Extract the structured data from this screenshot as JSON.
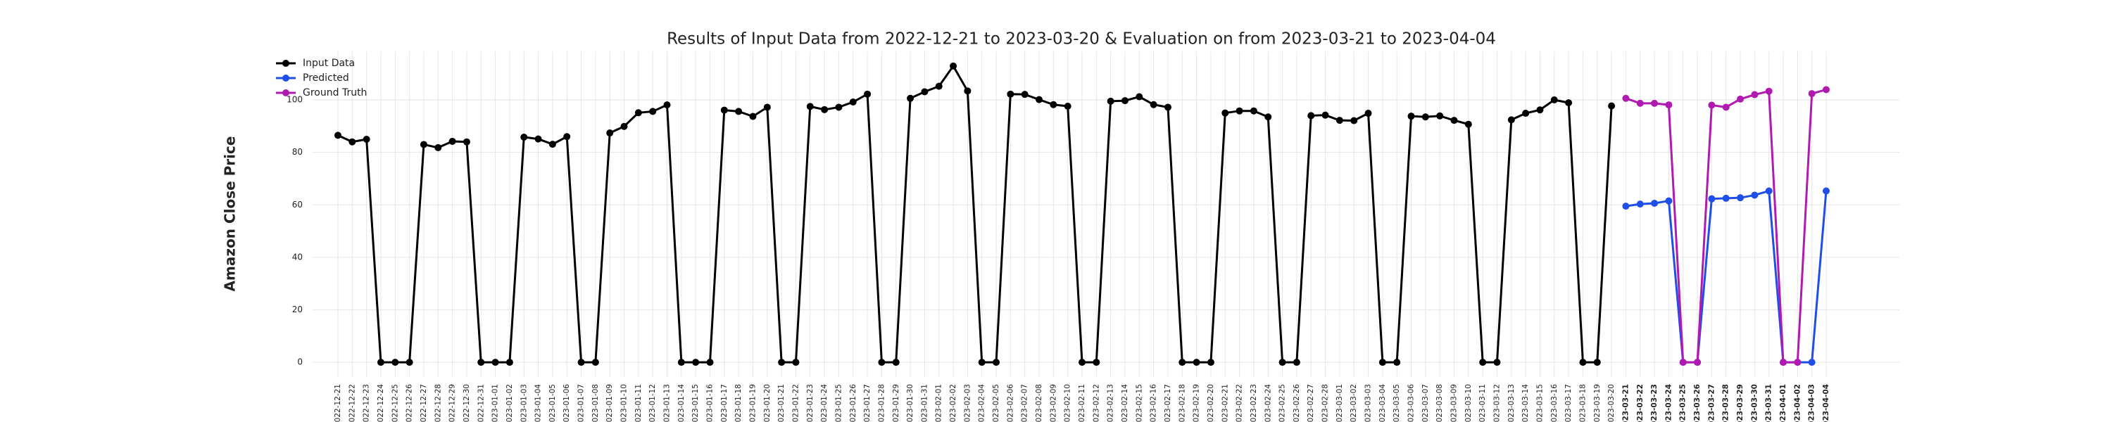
{
  "chart_data": {
    "type": "line",
    "title": "Results of Input Data from 2022-12-21 to 2023-03-20 & Evaluation on from 2023-03-21 to 2023-04-04",
    "y_label": "Amazon Close Price",
    "categories": [
      "2022-12-21",
      "2022-12-22",
      "2022-12-23",
      "2022-12-24",
      "2022-12-25",
      "2022-12-26",
      "2022-12-27",
      "2022-12-28",
      "2022-12-29",
      "2022-12-30",
      "2022-12-31",
      "2023-01-01",
      "2023-01-02",
      "2023-01-03",
      "2023-01-04",
      "2023-01-05",
      "2023-01-06",
      "2023-01-07",
      "2023-01-08",
      "2023-01-09",
      "2023-01-10",
      "2023-01-11",
      "2023-01-12",
      "2023-01-13",
      "2023-01-14",
      "2023-01-15",
      "2023-01-16",
      "2023-01-17",
      "2023-01-18",
      "2023-01-19",
      "2023-01-20",
      "2023-01-21",
      "2023-01-22",
      "2023-01-23",
      "2023-01-24",
      "2023-01-25",
      "2023-01-26",
      "2023-01-27",
      "2023-01-28",
      "2023-01-29",
      "2023-01-30",
      "2023-01-31",
      "2023-02-01",
      "2023-02-02",
      "2023-02-03",
      "2023-02-04",
      "2023-02-05",
      "2023-02-06",
      "2023-02-07",
      "2023-02-08",
      "2023-02-09",
      "2023-02-10",
      "2023-02-11",
      "2023-02-12",
      "2023-02-13",
      "2023-02-14",
      "2023-02-15",
      "2023-02-16",
      "2023-02-17",
      "2023-02-18",
      "2023-02-19",
      "2023-02-20",
      "2023-02-21",
      "2023-02-22",
      "2023-02-23",
      "2023-02-24",
      "2023-02-25",
      "2023-02-26",
      "2023-02-27",
      "2023-02-28",
      "2023-03-01",
      "2023-03-02",
      "2023-03-03",
      "2023-03-04",
      "2023-03-05",
      "2023-03-06",
      "2023-03-07",
      "2023-03-08",
      "2023-03-09",
      "2023-03-10",
      "2023-03-11",
      "2023-03-12",
      "2023-03-13",
      "2023-03-14",
      "2023-03-15",
      "2023-03-16",
      "2023-03-17",
      "2023-03-18",
      "2023-03-19",
      "2023-03-20",
      "2023-03-21",
      "2023-03-22",
      "2023-03-23",
      "2023-03-24",
      "2023-03-25",
      "2023-03-26",
      "2023-03-27",
      "2023-03-28",
      "2023-03-29",
      "2023-03-30",
      "2023-03-31",
      "2023-04-01",
      "2023-04-02",
      "2023-04-03",
      "2023-04-04"
    ],
    "series": [
      {
        "name": "Input Data",
        "color": "#000000",
        "values": [
          86.5,
          84,
          85,
          0,
          0,
          0,
          83,
          81.8,
          84.2,
          84,
          0,
          0,
          0,
          85.8,
          85.1,
          83.1,
          86,
          0,
          0,
          87.4,
          89.9,
          95.1,
          95.6,
          98.1,
          0,
          0,
          0,
          96.1,
          95.6,
          93.7,
          97.2,
          0,
          0,
          97.5,
          96.3,
          97.2,
          99.2,
          102.2,
          0,
          0,
          100.6,
          103.1,
          105.2,
          112.9,
          103.4,
          0,
          0,
          102.2,
          102.1,
          100.1,
          98.2,
          97.6,
          0,
          0,
          99.5,
          99.7,
          101.2,
          98.2,
          97.2,
          0,
          0,
          0,
          95,
          95.8,
          95.8,
          93.5,
          0,
          0,
          94,
          94.2,
          92.2,
          92.1,
          94.9,
          0,
          0,
          93.8,
          93.5,
          93.9,
          92.2,
          90.7,
          0,
          0,
          92.4,
          94.9,
          96.2,
          100,
          98.9,
          0,
          0,
          97.7,
          null,
          null,
          null,
          null,
          null,
          null,
          null,
          null,
          null,
          null,
          null,
          null,
          null,
          null,
          null
        ]
      },
      {
        "name": "Predicted",
        "color": "#1f4ee8",
        "values": [
          null,
          null,
          null,
          null,
          null,
          null,
          null,
          null,
          null,
          null,
          null,
          null,
          null,
          null,
          null,
          null,
          null,
          null,
          null,
          null,
          null,
          null,
          null,
          null,
          null,
          null,
          null,
          null,
          null,
          null,
          null,
          null,
          null,
          null,
          null,
          null,
          null,
          null,
          null,
          null,
          null,
          null,
          null,
          null,
          null,
          null,
          null,
          null,
          null,
          null,
          null,
          null,
          null,
          null,
          null,
          null,
          null,
          null,
          null,
          null,
          null,
          null,
          null,
          null,
          null,
          null,
          null,
          null,
          null,
          null,
          null,
          null,
          null,
          null,
          null,
          null,
          null,
          null,
          null,
          null,
          null,
          null,
          null,
          null,
          null,
          null,
          null,
          null,
          null,
          null,
          59.5,
          60.3,
          60.6,
          61.5,
          0,
          0,
          62.3,
          62.5,
          62.7,
          63.7,
          65.3,
          0,
          0,
          0,
          65.3
        ]
      },
      {
        "name": "Ground Truth",
        "color": "#b01ab0",
        "values": [
          null,
          null,
          null,
          null,
          null,
          null,
          null,
          null,
          null,
          null,
          null,
          null,
          null,
          null,
          null,
          null,
          null,
          null,
          null,
          null,
          null,
          null,
          null,
          null,
          null,
          null,
          null,
          null,
          null,
          null,
          null,
          null,
          null,
          null,
          null,
          null,
          null,
          null,
          null,
          null,
          null,
          null,
          null,
          null,
          null,
          null,
          null,
          null,
          null,
          null,
          null,
          null,
          null,
          null,
          null,
          null,
          null,
          null,
          null,
          null,
          null,
          null,
          null,
          null,
          null,
          null,
          null,
          null,
          null,
          null,
          null,
          null,
          null,
          null,
          null,
          null,
          null,
          null,
          null,
          null,
          null,
          null,
          null,
          null,
          null,
          null,
          null,
          null,
          null,
          null,
          100.6,
          98.7,
          98.7,
          98.1,
          0,
          0,
          98,
          97.2,
          100.3,
          102,
          103.3,
          0,
          0,
          102.4,
          103.9
        ]
      }
    ],
    "ylim": [
      -5.6,
      118.5
    ],
    "yticks": [
      0,
      20,
      40,
      60,
      80,
      100
    ],
    "grid": true,
    "legend": "upper left"
  }
}
